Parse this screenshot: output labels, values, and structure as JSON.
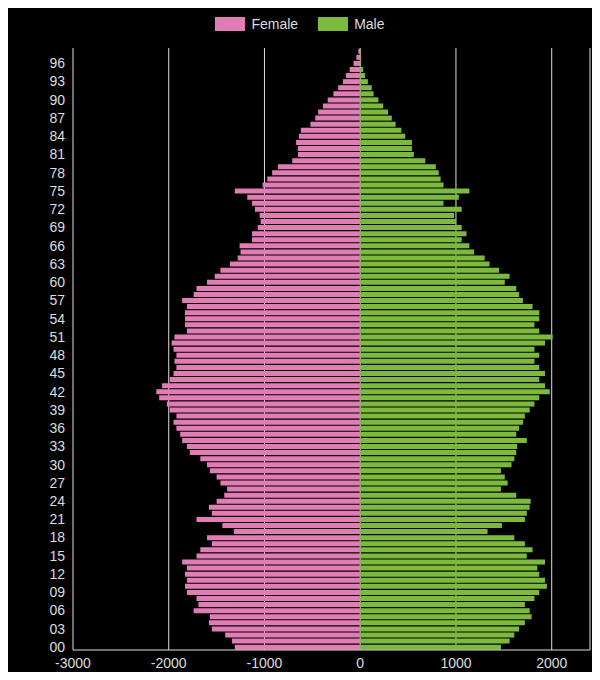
{
  "chart_data": {
    "type": "bar",
    "orientation": "horizontal",
    "stacked": true,
    "grid": true,
    "legend": "top",
    "categories": [
      "00",
      null,
      null,
      "03",
      null,
      null,
      "06",
      null,
      null,
      "09",
      null,
      null,
      "12",
      null,
      null,
      "15",
      null,
      null,
      "18",
      null,
      null,
      "21",
      null,
      null,
      "24",
      null,
      null,
      "27",
      null,
      null,
      "30",
      null,
      null,
      "33",
      null,
      null,
      "36",
      null,
      null,
      "39",
      null,
      null,
      "42",
      null,
      null,
      "45",
      null,
      null,
      "48",
      null,
      null,
      "51",
      null,
      null,
      "54",
      null,
      null,
      "57",
      null,
      null,
      "60",
      null,
      null,
      "63",
      null,
      null,
      "66",
      null,
      null,
      "69",
      null,
      null,
      "72",
      null,
      null,
      "75",
      null,
      null,
      "78",
      null,
      null,
      "81",
      null,
      null,
      "84",
      null,
      null,
      "87",
      null,
      null,
      "90",
      null,
      null,
      "93",
      null,
      null,
      "96",
      null,
      null
    ],
    "series": [
      {
        "name": "Female",
        "color": "#e27cb5",
        "values": [
          -1310,
          -1340,
          -1410,
          -1550,
          -1580,
          -1570,
          -1740,
          -1690,
          -1710,
          -1810,
          -1830,
          -1810,
          -1830,
          -1810,
          -1860,
          -1710,
          -1670,
          -1550,
          -1600,
          -1320,
          -1440,
          -1710,
          -1550,
          -1580,
          -1500,
          -1420,
          -1390,
          -1460,
          -1500,
          -1570,
          -1600,
          -1670,
          -1780,
          -1810,
          -1860,
          -1880,
          -1920,
          -1950,
          -1920,
          -1990,
          -2020,
          -2100,
          -2130,
          -2070,
          -1990,
          -1950,
          -1920,
          -1940,
          -1920,
          -1950,
          -1970,
          -1940,
          -1810,
          -1830,
          -1830,
          -1830,
          -1810,
          -1860,
          -1740,
          -1710,
          -1600,
          -1520,
          -1460,
          -1360,
          -1280,
          -1250,
          -1260,
          -1130,
          -1130,
          -1070,
          -1040,
          -1050,
          -1100,
          -1130,
          -1180,
          -1310,
          -1020,
          -970,
          -920,
          -860,
          -710,
          -650,
          -650,
          -670,
          -640,
          -620,
          -520,
          -470,
          -440,
          -390,
          -340,
          -280,
          -230,
          -180,
          -150,
          -110,
          -70,
          -40,
          -20
        ]
      },
      {
        "name": "Male",
        "color": "#7cba3d",
        "values": [
          1470,
          1560,
          1610,
          1660,
          1720,
          1790,
          1770,
          1720,
          1820,
          1870,
          1950,
          1930,
          1870,
          1850,
          1930,
          1740,
          1800,
          1720,
          1610,
          1330,
          1480,
          1720,
          1740,
          1770,
          1780,
          1630,
          1470,
          1540,
          1510,
          1470,
          1580,
          1610,
          1630,
          1640,
          1740,
          1630,
          1660,
          1700,
          1720,
          1770,
          1820,
          1870,
          1980,
          1930,
          1870,
          1930,
          1870,
          1820,
          1870,
          1820,
          1930,
          2010,
          1870,
          1820,
          1870,
          1870,
          1800,
          1700,
          1660,
          1630,
          1510,
          1560,
          1450,
          1350,
          1300,
          1190,
          1140,
          1060,
          1110,
          1060,
          1000,
          980,
          1060,
          870,
          1030,
          1140,
          870,
          840,
          820,
          790,
          680,
          560,
          540,
          540,
          470,
          430,
          370,
          330,
          290,
          240,
          190,
          140,
          120,
          80,
          50,
          30,
          10,
          10,
          5
        ]
      }
    ],
    "xlim": [
      -3000,
      2400
    ],
    "xticks": [
      -3000,
      -2000,
      -1000,
      0,
      1000,
      2000
    ]
  }
}
